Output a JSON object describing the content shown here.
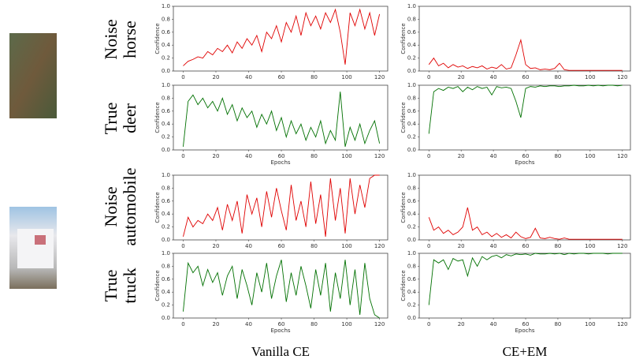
{
  "figure": {
    "rows": [
      {
        "kind": "Noise",
        "label": "horse"
      },
      {
        "kind": "True",
        "label": "deer"
      },
      {
        "kind": "Noise",
        "label": "automobile"
      },
      {
        "kind": "True",
        "label": "truck"
      }
    ],
    "columns": [
      "Vanilla CE",
      "CE+EM"
    ]
  },
  "chart_data": [
    {
      "type": "line",
      "ylabel": "Confidence",
      "color": "#e00000",
      "xlim": [
        -6,
        125
      ],
      "ylim": [
        0,
        1
      ],
      "xticks": [
        0,
        20,
        40,
        60,
        80,
        100,
        120
      ],
      "yticks": [
        {
          "value": 0,
          "label": "0.0"
        },
        0.2,
        0.4,
        0.6,
        0.8,
        {
          "value": 1,
          "label": "1.0"
        }
      ],
      "x": [
        0,
        3,
        6,
        9,
        12,
        15,
        18,
        21,
        24,
        27,
        30,
        33,
        36,
        39,
        42,
        45,
        48,
        51,
        54,
        57,
        60,
        63,
        66,
        69,
        72,
        75,
        78,
        81,
        84,
        87,
        90,
        93,
        96,
        99,
        102,
        105,
        108,
        111,
        114,
        117,
        120
      ],
      "values": [
        0.08,
        0.15,
        0.18,
        0.22,
        0.2,
        0.3,
        0.25,
        0.35,
        0.3,
        0.4,
        0.28,
        0.45,
        0.35,
        0.5,
        0.4,
        0.55,
        0.3,
        0.6,
        0.5,
        0.7,
        0.45,
        0.75,
        0.6,
        0.85,
        0.55,
        0.9,
        0.7,
        0.85,
        0.65,
        0.9,
        0.75,
        0.95,
        0.6,
        0.1,
        0.9,
        0.7,
        0.95,
        0.65,
        0.9,
        0.55,
        0.88
      ]
    },
    {
      "type": "line",
      "ylabel": "Confidence",
      "color": "#e00000",
      "xlim": [
        -6,
        125
      ],
      "ylim": [
        0,
        1
      ],
      "xticks": [
        0,
        20,
        40,
        60,
        80,
        100,
        120
      ],
      "yticks": [
        {
          "value": 0,
          "label": "0.0"
        },
        0.2,
        0.4,
        0.6,
        0.8,
        {
          "value": 1,
          "label": "1.0"
        }
      ],
      "x": [
        0,
        3,
        6,
        9,
        12,
        15,
        18,
        21,
        24,
        27,
        30,
        33,
        36,
        39,
        42,
        45,
        48,
        51,
        54,
        57,
        60,
        63,
        66,
        69,
        72,
        75,
        78,
        81,
        84,
        87,
        90,
        93,
        96,
        99,
        102,
        105,
        108,
        111,
        114,
        117,
        120
      ],
      "values": [
        0.1,
        0.2,
        0.08,
        0.12,
        0.05,
        0.1,
        0.06,
        0.08,
        0.04,
        0.07,
        0.05,
        0.08,
        0.03,
        0.06,
        0.04,
        0.1,
        0.03,
        0.05,
        0.25,
        0.48,
        0.1,
        0.04,
        0.05,
        0.02,
        0.03,
        0.02,
        0.04,
        0.12,
        0.02,
        0.01,
        0.01,
        0.01,
        0.01,
        0.01,
        0.01,
        0.01,
        0.01,
        0.01,
        0.01,
        0.01,
        0.01
      ]
    },
    {
      "type": "line",
      "ylabel": "Confidence",
      "xlabel": "Epochs",
      "color": "#007000",
      "xlim": [
        -6,
        125
      ],
      "ylim": [
        0,
        1
      ],
      "xticks": [
        0,
        20,
        40,
        60,
        80,
        100,
        120
      ],
      "yticks": [
        {
          "value": 0,
          "label": "0.0"
        },
        0.2,
        0.4,
        0.6,
        0.8,
        {
          "value": 1,
          "label": "1.0"
        }
      ],
      "x": [
        0,
        3,
        6,
        9,
        12,
        15,
        18,
        21,
        24,
        27,
        30,
        33,
        36,
        39,
        42,
        45,
        48,
        51,
        54,
        57,
        60,
        63,
        66,
        69,
        72,
        75,
        78,
        81,
        84,
        87,
        90,
        93,
        96,
        99,
        102,
        105,
        108,
        111,
        114,
        117,
        120
      ],
      "values": [
        0.05,
        0.75,
        0.85,
        0.7,
        0.8,
        0.65,
        0.75,
        0.6,
        0.8,
        0.55,
        0.7,
        0.45,
        0.65,
        0.5,
        0.6,
        0.35,
        0.55,
        0.4,
        0.6,
        0.3,
        0.5,
        0.2,
        0.45,
        0.25,
        0.4,
        0.15,
        0.35,
        0.2,
        0.45,
        0.1,
        0.3,
        0.15,
        0.9,
        0.05,
        0.35,
        0.15,
        0.4,
        0.1,
        0.3,
        0.45,
        0.1
      ]
    },
    {
      "type": "line",
      "ylabel": "Confidence",
      "xlabel": "Epochs",
      "color": "#007000",
      "xlim": [
        -6,
        125
      ],
      "ylim": [
        0,
        1
      ],
      "xticks": [
        0,
        20,
        40,
        60,
        80,
        100,
        120
      ],
      "yticks": [
        {
          "value": 0,
          "label": "0.0"
        },
        0.2,
        0.4,
        0.6,
        0.8,
        {
          "value": 1,
          "label": "1.0"
        }
      ],
      "x": [
        0,
        3,
        6,
        9,
        12,
        15,
        18,
        21,
        24,
        27,
        30,
        33,
        36,
        39,
        42,
        45,
        48,
        51,
        54,
        57,
        60,
        63,
        66,
        69,
        72,
        75,
        78,
        81,
        84,
        87,
        90,
        93,
        96,
        99,
        102,
        105,
        108,
        111,
        114,
        117,
        120
      ],
      "values": [
        0.25,
        0.9,
        0.95,
        0.92,
        0.97,
        0.95,
        0.98,
        0.9,
        0.97,
        0.93,
        0.98,
        0.95,
        0.97,
        0.85,
        0.98,
        0.96,
        0.97,
        0.95,
        0.75,
        0.5,
        0.95,
        0.98,
        0.97,
        0.99,
        0.98,
        0.99,
        0.99,
        0.98,
        0.99,
        0.99,
        1,
        0.99,
        0.99,
        1,
        0.99,
        1,
        0.99,
        1,
        1,
        0.99,
        1
      ]
    },
    {
      "type": "line",
      "ylabel": "Confidence",
      "color": "#e00000",
      "xlim": [
        -6,
        125
      ],
      "ylim": [
        0,
        1
      ],
      "xticks": [
        0,
        20,
        40,
        60,
        80,
        100,
        120
      ],
      "yticks": [
        {
          "value": 0,
          "label": "0.0"
        },
        0.2,
        0.4,
        0.6,
        0.8,
        {
          "value": 1,
          "label": "1.0"
        }
      ],
      "x": [
        0,
        3,
        6,
        9,
        12,
        15,
        18,
        21,
        24,
        27,
        30,
        33,
        36,
        39,
        42,
        45,
        48,
        51,
        54,
        57,
        60,
        63,
        66,
        69,
        72,
        75,
        78,
        81,
        84,
        87,
        90,
        93,
        96,
        99,
        102,
        105,
        108,
        111,
        114,
        117,
        120
      ],
      "values": [
        0.05,
        0.35,
        0.2,
        0.3,
        0.25,
        0.4,
        0.3,
        0.5,
        0.15,
        0.55,
        0.3,
        0.6,
        0.1,
        0.7,
        0.4,
        0.65,
        0.2,
        0.75,
        0.35,
        0.8,
        0.45,
        0.15,
        0.85,
        0.3,
        0.6,
        0.2,
        0.9,
        0.25,
        0.7,
        0.05,
        0.95,
        0.3,
        0.8,
        0.1,
        0.95,
        0.4,
        0.85,
        0.5,
        0.95,
        1,
        1
      ]
    },
    {
      "type": "line",
      "ylabel": "Confidence",
      "color": "#e00000",
      "xlim": [
        -6,
        125
      ],
      "ylim": [
        0,
        1
      ],
      "xticks": [
        0,
        20,
        40,
        60,
        80,
        100,
        120
      ],
      "yticks": [
        {
          "value": 0,
          "label": "0.0"
        },
        0.2,
        0.4,
        0.6,
        0.8,
        {
          "value": 1,
          "label": "1.0"
        }
      ],
      "x": [
        0,
        3,
        6,
        9,
        12,
        15,
        18,
        21,
        24,
        27,
        30,
        33,
        36,
        39,
        42,
        45,
        48,
        51,
        54,
        57,
        60,
        63,
        66,
        69,
        72,
        75,
        78,
        81,
        84,
        87,
        90,
        93,
        96,
        99,
        102,
        105,
        108,
        111,
        114,
        117,
        120
      ],
      "values": [
        0.35,
        0.15,
        0.2,
        0.1,
        0.15,
        0.08,
        0.12,
        0.2,
        0.5,
        0.15,
        0.2,
        0.08,
        0.12,
        0.05,
        0.1,
        0.04,
        0.08,
        0.03,
        0.12,
        0.05,
        0.02,
        0.04,
        0.18,
        0.03,
        0.02,
        0.04,
        0.02,
        0.01,
        0.03,
        0.01,
        0.01,
        0.01,
        0.01,
        0.01,
        0.01,
        0.01,
        0.01,
        0.01,
        0.01,
        0.01,
        0.01
      ]
    },
    {
      "type": "line",
      "ylabel": "Confidence",
      "xlabel": "Epochs",
      "color": "#007000",
      "xlim": [
        -6,
        125
      ],
      "ylim": [
        0,
        1
      ],
      "xticks": [
        0,
        20,
        40,
        60,
        80,
        100,
        120
      ],
      "yticks": [
        {
          "value": 0,
          "label": "0.0"
        },
        0.2,
        0.4,
        0.6,
        0.8,
        {
          "value": 1,
          "label": "1.0"
        }
      ],
      "x": [
        0,
        3,
        6,
        9,
        12,
        15,
        18,
        21,
        24,
        27,
        30,
        33,
        36,
        39,
        42,
        45,
        48,
        51,
        54,
        57,
        60,
        63,
        66,
        69,
        72,
        75,
        78,
        81,
        84,
        87,
        90,
        93,
        96,
        99,
        102,
        105,
        108,
        111,
        114,
        117,
        120
      ],
      "values": [
        0.1,
        0.85,
        0.7,
        0.8,
        0.5,
        0.75,
        0.55,
        0.7,
        0.35,
        0.65,
        0.8,
        0.3,
        0.75,
        0.5,
        0.2,
        0.7,
        0.4,
        0.85,
        0.3,
        0.65,
        0.9,
        0.25,
        0.7,
        0.35,
        0.8,
        0.5,
        0.15,
        0.75,
        0.35,
        0.85,
        0.1,
        0.7,
        0.3,
        0.9,
        0.2,
        0.75,
        0.05,
        0.85,
        0.3,
        0.05,
        0
      ]
    },
    {
      "type": "line",
      "ylabel": "Confidence",
      "xlabel": "Epochs",
      "color": "#007000",
      "xlim": [
        -6,
        125
      ],
      "ylim": [
        0,
        1
      ],
      "xticks": [
        0,
        20,
        40,
        60,
        80,
        100,
        120
      ],
      "yticks": [
        {
          "value": 0,
          "label": "0.0"
        },
        0.2,
        0.4,
        0.6,
        0.8,
        {
          "value": 1,
          "label": "1.0"
        }
      ],
      "x": [
        0,
        3,
        6,
        9,
        12,
        15,
        18,
        21,
        24,
        27,
        30,
        33,
        36,
        39,
        42,
        45,
        48,
        51,
        54,
        57,
        60,
        63,
        66,
        69,
        72,
        75,
        78,
        81,
        84,
        87,
        90,
        93,
        96,
        99,
        102,
        105,
        108,
        111,
        114,
        117,
        120
      ],
      "values": [
        0.2,
        0.9,
        0.85,
        0.9,
        0.75,
        0.92,
        0.88,
        0.9,
        0.65,
        0.93,
        0.8,
        0.95,
        0.9,
        0.95,
        0.97,
        0.93,
        0.98,
        0.96,
        0.99,
        0.98,
        0.99,
        0.97,
        1,
        0.99,
        0.99,
        1,
        0.99,
        1,
        0.98,
        1,
        0.99,
        1,
        1,
        0.99,
        1,
        1,
        1,
        0.99,
        1,
        1,
        1
      ]
    }
  ]
}
